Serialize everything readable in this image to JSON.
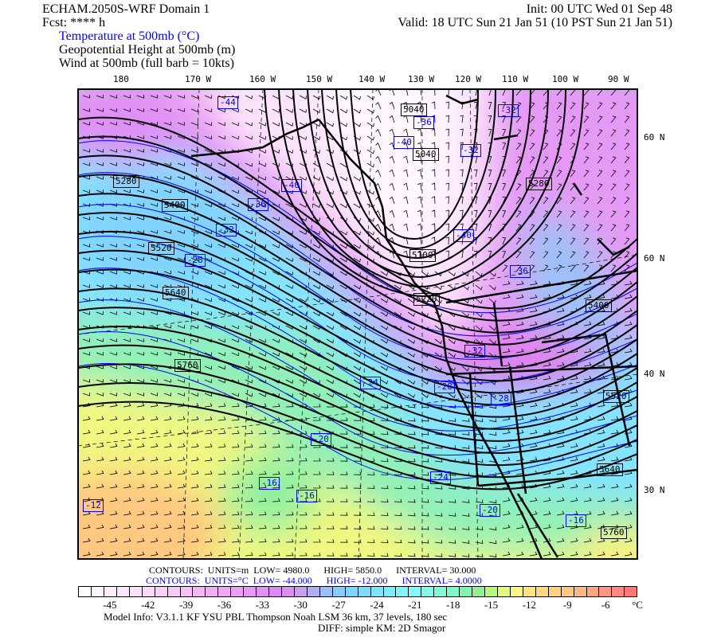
{
  "header": {
    "model": "ECHAM.2050S-WRF Domain 1",
    "init": "Init: 00 UTC Wed 01 Sep 48",
    "fcst": "Fcst: **** h",
    "valid": "Valid: 18 UTC Sun 21 Jan 51 (10 PST Sun 21 Jan 51)",
    "fields": [
      "Temperature at 500mb (°C)",
      "Geopotential Height at 500mb (m)",
      "Wind at 500mb (full barb = 10kts)"
    ]
  },
  "axes": {
    "lon_labels": [
      "180",
      "170 W",
      "160 W",
      "150 W",
      "140 W",
      "130 W",
      "120 W",
      "110 W",
      "100 W",
      "90 W"
    ],
    "lat_labels": [
      "60 N",
      "60 N",
      "40 N",
      "30 N"
    ]
  },
  "height_contour_labels": [
    "5040",
    "5040",
    "5280",
    "5400",
    "5280",
    "5520",
    "5100",
    "5640",
    "5220",
    "5400",
    "5760",
    "5520",
    "5640",
    "5760"
  ],
  "temperature_contour_labels": [
    "-44",
    "-36",
    "-32",
    "-40",
    "-32",
    "-40",
    "-36",
    "-32",
    "-28",
    "-40",
    "-36",
    "-32",
    "-24",
    "-28",
    "-28",
    "-20",
    "-24",
    "-16",
    "-16",
    "-12",
    "-20",
    "-16"
  ],
  "contour_info": {
    "height": {
      "contours": "CONTOURS:",
      "units": "UNITS=m",
      "low": "LOW=   4980.0",
      "high": "HIGH=   5850.0",
      "interval": "INTERVAL=     30.000"
    },
    "temperature": {
      "contours": "CONTOURS:",
      "units": "UNITS=°C",
      "low": "LOW= -44.000",
      "high": "HIGH= -12.000",
      "interval": "INTERVAL=     4.0000"
    },
    "height_color": "#000000",
    "temperature_color": "#0000ff"
  },
  "colorbar": {
    "unit": "°C",
    "tick_labels": [
      "-45",
      "-42",
      "-39",
      "-36",
      "-33",
      "-30",
      "-27",
      "-24",
      "-21",
      "-18",
      "-15",
      "-12",
      "-9",
      "-6"
    ],
    "range": [
      -47.5,
      -3.5
    ],
    "colors": [
      "#ffffff",
      "#fff4ff",
      "#ffeeff",
      "#ffe8ff",
      "#ffe0ff",
      "#fcd8fc",
      "#fad0fa",
      "#f8c8f8",
      "#f6c0f8",
      "#f4b8f6",
      "#f2b0f4",
      "#f0a8f4",
      "#eca0f4",
      "#e898f4",
      "#e490f4",
      "#e088f4",
      "#d890f0",
      "#c8a0f0",
      "#b0b0f0",
      "#98c0f8",
      "#88ccff",
      "#80d4ff",
      "#80dcff",
      "#80e4ff",
      "#80ecff",
      "#80f4ff",
      "#80fcff",
      "#80fce8",
      "#80fcd8",
      "#80f8c8",
      "#80f4b0",
      "#90f090",
      "#b8f880",
      "#e0fc80",
      "#fff880",
      "#ffe480",
      "#ffd880",
      "#ffd080",
      "#ffc880",
      "#ffb880",
      "#ffa880",
      "#ff9880",
      "#ff8880",
      "#ff7878"
    ]
  },
  "footer": {
    "model_info": "Model Info: V3.1.1    KF       YSU PBL   Thompson     Noah LSM   36 km,     37 levels,   180 sec",
    "diff": "DIFF: simple KM: 2D Smagor"
  }
}
